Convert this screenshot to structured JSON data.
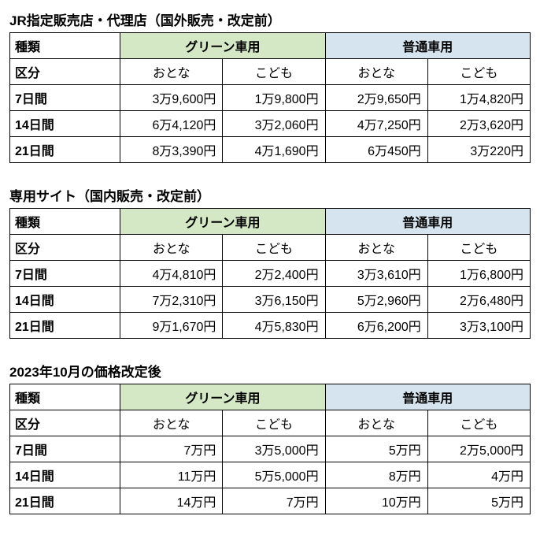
{
  "colors": {
    "green_header_bg": "#d4e8c6",
    "blue_header_bg": "#d6e4ef",
    "border": "#000000",
    "text": "#000000",
    "bg": "#ffffff"
  },
  "common": {
    "type_label": "種類",
    "kubun_label": "区分",
    "green_car": "グリーン車用",
    "normal_car": "普通車用",
    "adult": "おとな",
    "child": "こども",
    "period_7": "7日間",
    "period_14": "14日間",
    "period_21": "21日間"
  },
  "tables": [
    {
      "title": "JR指定販売店・代理店（国外販売・改定前）",
      "rows": [
        {
          "g_adult": "3万9,600円",
          "g_child": "1万9,800円",
          "n_adult": "2万9,650円",
          "n_child": "1万4,820円"
        },
        {
          "g_adult": "6万4,120円",
          "g_child": "3万2,060円",
          "n_adult": "4万7,250円",
          "n_child": "2万3,620円"
        },
        {
          "g_adult": "8万3,390円",
          "g_child": "4万1,690円",
          "n_adult": "6万450円",
          "n_child": "3万220円"
        }
      ]
    },
    {
      "title": "専用サイト（国内販売・改定前）",
      "rows": [
        {
          "g_adult": "4万4,810円",
          "g_child": "2万2,400円",
          "n_adult": "3万3,610円",
          "n_child": "1万6,800円"
        },
        {
          "g_adult": "7万2,310円",
          "g_child": "3万6,150円",
          "n_adult": "5万2,960円",
          "n_child": "2万6,480円"
        },
        {
          "g_adult": "9万1,670円",
          "g_child": "4万5,830円",
          "n_adult": "6万6,200円",
          "n_child": "3万3,100円"
        }
      ]
    },
    {
      "title": "2023年10月の価格改定後",
      "rows": [
        {
          "g_adult": "7万円",
          "g_child": "3万5,000円",
          "n_adult": "5万円",
          "n_child": "2万5,000円"
        },
        {
          "g_adult": "11万円",
          "g_child": "5万5,000円",
          "n_adult": "8万円",
          "n_child": "4万円"
        },
        {
          "g_adult": "14万円",
          "g_child": "7万円",
          "n_adult": "10万円",
          "n_child": "5万円"
        }
      ]
    }
  ]
}
